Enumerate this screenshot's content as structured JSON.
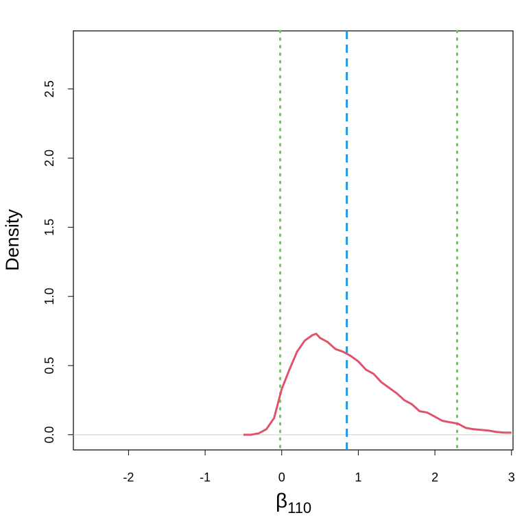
{
  "chart_data": {
    "type": "line",
    "x_label": {
      "symbol": "β",
      "subscript": "110"
    },
    "y_label": "Density",
    "xlim": [
      -2.72,
      3.02
    ],
    "ylim": [
      -0.11,
      2.92
    ],
    "xticks": [
      -2,
      -1,
      0,
      1,
      2,
      3
    ],
    "yticks": [
      {
        "value": 0,
        "label": "0.0"
      },
      0.5,
      {
        "value": 1,
        "label": "1.0"
      },
      1.5,
      {
        "value": 2,
        "label": "2.0"
      },
      2.5
    ],
    "hline": {
      "value": 0,
      "color": "#cccccc"
    },
    "vlines": [
      {
        "value": -0.02,
        "color": "#61d04f",
        "style": "dotted"
      },
      {
        "value": 0.85,
        "color": "#2297e6",
        "style": "dashed"
      },
      {
        "value": 2.29,
        "color": "#61d04f",
        "style": "dotted"
      }
    ],
    "series": [
      {
        "name": "density",
        "color": "#df536b",
        "x": [
          -0.5,
          -0.4,
          -0.3,
          -0.2,
          -0.1,
          0,
          0.1,
          0.2,
          0.3,
          0.4,
          0.45,
          0.5,
          0.6,
          0.7,
          0.8,
          0.9,
          1.0,
          1.1,
          1.2,
          1.3,
          1.4,
          1.5,
          1.6,
          1.7,
          1.8,
          1.9,
          2.0,
          2.1,
          2.2,
          2.3,
          2.4,
          2.5,
          2.6,
          2.7,
          2.8,
          2.9,
          3.0
        ],
        "values": [
          0,
          0,
          0.01,
          0.04,
          0.12,
          0.33,
          0.47,
          0.6,
          0.68,
          0.72,
          0.73,
          0.7,
          0.67,
          0.62,
          0.6,
          0.57,
          0.53,
          0.47,
          0.44,
          0.38,
          0.34,
          0.3,
          0.25,
          0.22,
          0.17,
          0.16,
          0.13,
          0.1,
          0.09,
          0.08,
          0.05,
          0.04,
          0.035,
          0.03,
          0.02,
          0.015,
          0.015
        ]
      }
    ]
  }
}
